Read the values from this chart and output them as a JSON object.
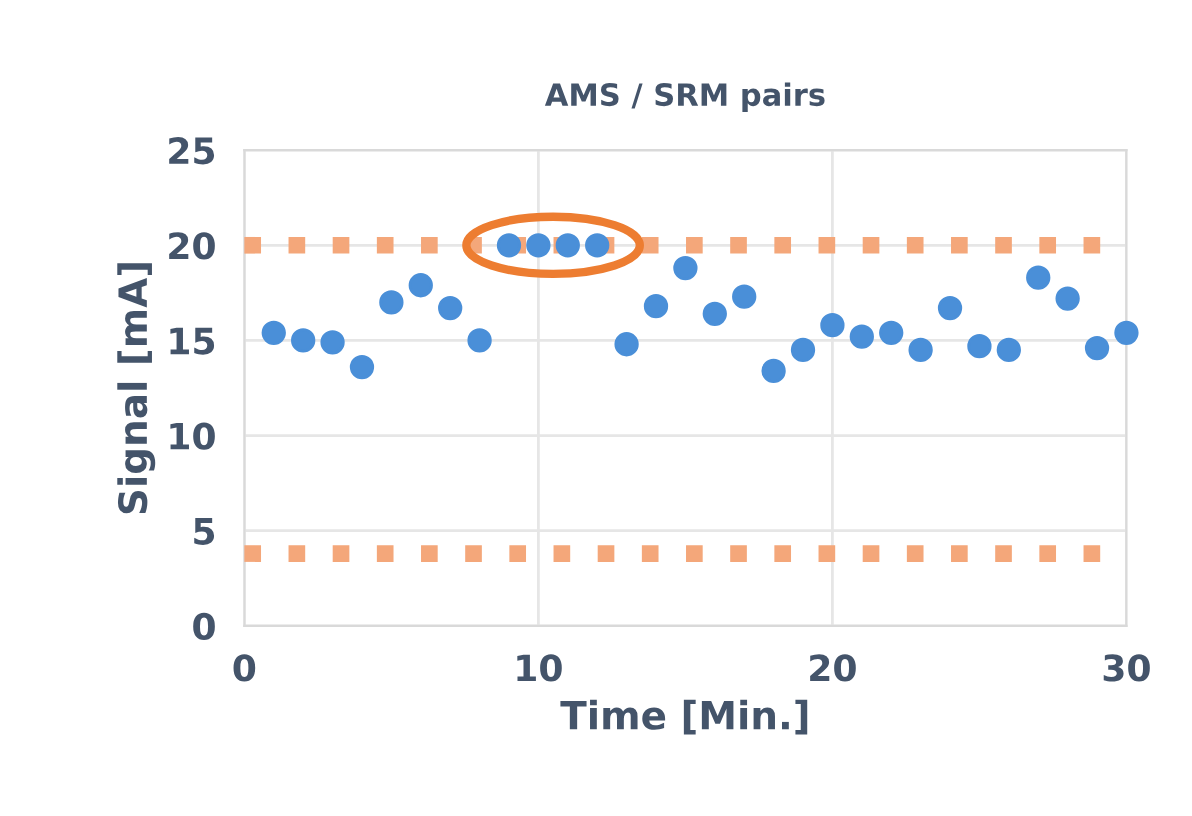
{
  "chart_data": {
    "type": "scatter",
    "title": "AMS / SRM pairs",
    "xlabel": "Time [Min.]",
    "ylabel": "Signal [mA]",
    "x": [
      1,
      2,
      3,
      4,
      5,
      6,
      7,
      8,
      9,
      10,
      11,
      12,
      13,
      14,
      15,
      16,
      17,
      18,
      19,
      20,
      21,
      22,
      23,
      24,
      25,
      26,
      27,
      28,
      29,
      30
    ],
    "series": [
      {
        "color": "#4a8fd8",
        "values": [
          15.4,
          15.0,
          14.9,
          13.6,
          17.0,
          17.9,
          16.7,
          15.0,
          20,
          20,
          20,
          20,
          14.8,
          16.8,
          18.8,
          16.4,
          17.3,
          13.4,
          14.5,
          15.8,
          15.2,
          15.4,
          14.5,
          16.7,
          14.7,
          14.5,
          18.3,
          17.2,
          14.6,
          15.4
        ]
      }
    ],
    "marker": "circle",
    "xlim": [
      0,
      30
    ],
    "xticks": [
      0,
      10,
      20,
      30
    ],
    "ylim": [
      0,
      25
    ],
    "yticks": [
      0,
      5,
      10,
      15,
      20,
      25
    ],
    "grid": true,
    "ref_lines": [
      {
        "axis": "y",
        "value": 20,
        "color": "#f4a77a",
        "line_style": "dotted"
      },
      {
        "axis": "y",
        "value": 3.8,
        "color": "#f4a77a",
        "line_style": "dotted"
      }
    ]
  }
}
